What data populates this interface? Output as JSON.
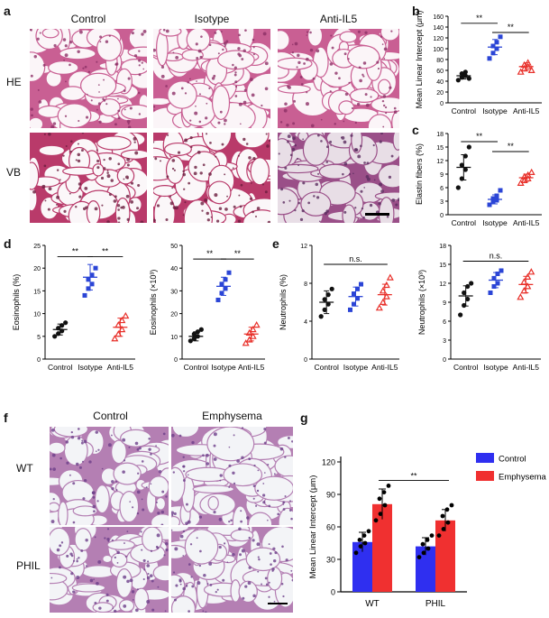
{
  "panel_letters": {
    "a": "a",
    "b": "b",
    "c": "c",
    "d": "d",
    "e": "e",
    "f": "f",
    "g": "g"
  },
  "panel_a": {
    "columns": [
      "Control",
      "Isotype",
      "Anti-IL5"
    ],
    "rows": [
      "HE",
      "VB"
    ]
  },
  "panel_f": {
    "columns": [
      "Control",
      "Emphysema"
    ],
    "rows": [
      "WT",
      "PHIL"
    ]
  },
  "colors": {
    "control": "#111111",
    "isotype": "#2b45d6",
    "anti_il5": "#e8302a",
    "bar_control": "#2f2ff0",
    "bar_emphysema": "#f03030",
    "he_stain": "#c95f93",
    "vb_stain": "#b93a6a"
  },
  "chart_data": [
    {
      "id": "b",
      "type": "scatter",
      "categories": [
        "Control",
        "Isotype",
        "Anti-IL5"
      ],
      "ylabel": "Mean Linear Intercept (μm)",
      "ylim": [
        0,
        160
      ],
      "yticks": [
        "0",
        "20",
        "40",
        "60",
        "80",
        "100",
        "120",
        "140",
        "160"
      ],
      "ystep": 20,
      "series": [
        {
          "name": "Control",
          "points": [
            42,
            47,
            50,
            54,
            57,
            45
          ],
          "mean": 50,
          "err": 6
        },
        {
          "name": "Isotype",
          "points": [
            82,
            92,
            100,
            105,
            112,
            122
          ],
          "mean": 103,
          "err": 14
        },
        {
          "name": "Anti-IL5",
          "points": [
            57,
            63,
            67,
            70,
            74,
            60
          ],
          "mean": 67,
          "err": 7
        }
      ],
      "significance": [
        {
          "from": 0,
          "to": 1,
          "label": "**",
          "y": 147
        },
        {
          "from": 1,
          "to": 2,
          "label": "**",
          "y": 130
        }
      ]
    },
    {
      "id": "c",
      "type": "scatter",
      "categories": [
        "Control",
        "Isotype",
        "Anti-IL5"
      ],
      "ylabel": "Elastin fibers (%)",
      "ylim": [
        0,
        18
      ],
      "yticks": [
        "0",
        "3",
        "6",
        "9",
        "12",
        "15",
        "18"
      ],
      "ystep": 3,
      "series": [
        {
          "name": "Control",
          "points": [
            6,
            8,
            10,
            11,
            13,
            15
          ],
          "mean": 10.5,
          "err": 2.8
        },
        {
          "name": "Isotype",
          "points": [
            2.2,
            2.8,
            3.2,
            3.6,
            4.2,
            5.4
          ],
          "mean": 3.4,
          "err": 1
        },
        {
          "name": "Anti-IL5",
          "points": [
            7,
            7.6,
            8,
            8.4,
            8.8,
            9.4
          ],
          "mean": 8.2,
          "err": 0.8
        }
      ],
      "significance": [
        {
          "from": 0,
          "to": 1,
          "label": "**",
          "y": 16.2
        },
        {
          "from": 1,
          "to": 2,
          "label": "**",
          "y": 14
        }
      ]
    },
    {
      "id": "d1",
      "type": "scatter",
      "categories": [
        "Control",
        "Isotype",
        "Anti-IL5"
      ],
      "ylabel": "Eosinophils (%)",
      "ylim": [
        0,
        25
      ],
      "yticks": [
        "0",
        "5",
        "10",
        "15",
        "20",
        "25"
      ],
      "ystep": 5,
      "series": [
        {
          "name": "Control",
          "points": [
            5,
            5.6,
            6.2,
            6.8,
            7.4,
            8
          ],
          "mean": 6.5,
          "err": 1.2
        },
        {
          "name": "Isotype",
          "points": [
            14,
            15.5,
            16.5,
            17.5,
            18.5,
            20
          ],
          "mean": 18,
          "err": 2.8
        },
        {
          "name": "Anti-IL5",
          "points": [
            4.5,
            5.5,
            6.5,
            7.5,
            8.5,
            9.5
          ],
          "mean": 7,
          "err": 2
        }
      ],
      "significance": [
        {
          "from": 0,
          "to": 1,
          "label": "**",
          "y": 22.5
        },
        {
          "from": 1,
          "to": 2,
          "label": "**",
          "y": 22.5
        }
      ]
    },
    {
      "id": "d2",
      "type": "scatter",
      "categories": [
        "Control",
        "Isotype",
        "Anti-IL5"
      ],
      "ylabel": "Eosinophils (×10³)",
      "ylim": [
        0,
        50
      ],
      "yticks": [
        "0",
        "10",
        "20",
        "30",
        "40",
        "50"
      ],
      "ystep": 10,
      "series": [
        {
          "name": "Control",
          "points": [
            8,
            9,
            10,
            11,
            12,
            13
          ],
          "mean": 10,
          "err": 2
        },
        {
          "name": "Isotype",
          "points": [
            26,
            29,
            31,
            33,
            35,
            38
          ],
          "mean": 32,
          "err": 4
        },
        {
          "name": "Anti-IL5",
          "points": [
            7,
            8.5,
            10,
            11.5,
            13,
            15
          ],
          "mean": 11,
          "err": 3
        }
      ],
      "significance": [
        {
          "from": 0,
          "to": 1,
          "label": "**",
          "y": 44
        },
        {
          "from": 1,
          "to": 2,
          "label": "**",
          "y": 44
        }
      ]
    },
    {
      "id": "e1",
      "type": "scatter",
      "categories": [
        "Control",
        "Isotype",
        "Anti-IL5"
      ],
      "ylabel": "Neutrophils (%)",
      "ylim": [
        0,
        12
      ],
      "yticks": [
        "0",
        "4",
        "8",
        "12"
      ],
      "ystep": 4,
      "series": [
        {
          "name": "Control",
          "points": [
            4.5,
            5.2,
            5.8,
            6.3,
            6.8,
            7.4
          ],
          "mean": 6,
          "err": 1.2
        },
        {
          "name": "Isotype",
          "points": [
            5.2,
            5.8,
            6.4,
            6.9,
            7.4,
            7.9
          ],
          "mean": 6.6,
          "err": 1
        },
        {
          "name": "Anti-IL5",
          "points": [
            5.4,
            6,
            6.6,
            7.2,
            7.8,
            8.6
          ],
          "mean": 6.8,
          "err": 1.1
        }
      ],
      "significance": [
        {
          "from": 0,
          "to": 2,
          "label": "n.s.",
          "y": 10
        }
      ]
    },
    {
      "id": "e2",
      "type": "scatter",
      "categories": [
        "Control",
        "Isotype",
        "Anti-IL5"
      ],
      "ylabel": "Neutrophils (×10³)",
      "ylim": [
        0,
        18
      ],
      "yticks": [
        "0",
        "3",
        "6",
        "9",
        "12",
        "15",
        "18"
      ],
      "ystep": 3,
      "series": [
        {
          "name": "Control",
          "points": [
            7,
            8.5,
            9.5,
            10.5,
            11.5,
            12
          ],
          "mean": 10,
          "err": 1.6
        },
        {
          "name": "Isotype",
          "points": [
            10.5,
            11.5,
            12,
            12.8,
            13.5,
            14
          ],
          "mean": 12.5,
          "err": 1.2
        },
        {
          "name": "Anti-IL5",
          "points": [
            9.8,
            10.8,
            11.5,
            12.2,
            13,
            13.8
          ],
          "mean": 11.8,
          "err": 1.3
        }
      ],
      "significance": [
        {
          "from": 0,
          "to": 2,
          "label": "n.s.",
          "y": 15.5
        }
      ]
    },
    {
      "id": "g",
      "type": "bar",
      "categories": [
        "WT",
        "PHIL"
      ],
      "ylabel": "Mean Linear Intercept (μm)",
      "ylim": [
        0,
        120
      ],
      "yticks": [
        "0",
        "30",
        "60",
        "90",
        "120"
      ],
      "ystep": 30,
      "legend": [
        "Control",
        "Emphysema"
      ],
      "series": [
        {
          "name": "Control",
          "values": [
            46,
            42
          ],
          "errors": [
            9,
            8
          ],
          "points": [
            [
              36,
              42,
              45,
              48,
              52,
              56
            ],
            [
              32,
              36,
              40,
              44,
              48,
              52
            ]
          ]
        },
        {
          "name": "Emphysema",
          "values": [
            81,
            66
          ],
          "errors": [
            14,
            10
          ],
          "points": [
            [
              66,
              72,
              80,
              86,
              92,
              98
            ],
            [
              52,
              58,
              64,
              70,
              76,
              80
            ]
          ]
        }
      ],
      "significance": [
        {
          "from": 0,
          "to": 1,
          "label": "**",
          "y": 103
        }
      ]
    }
  ]
}
